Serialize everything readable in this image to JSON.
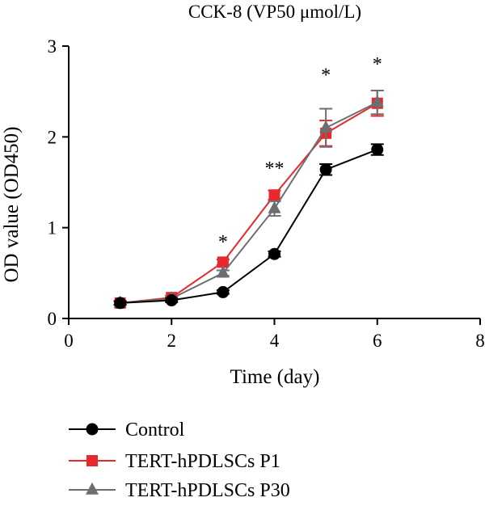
{
  "chart_data": {
    "type": "line",
    "title": "CCK-8 (VP50 μmol/L)",
    "xlabel": "Time (day)",
    "ylabel": "OD value (OD450)",
    "xlim": [
      0,
      8
    ],
    "ylim": [
      0,
      3
    ],
    "x_ticks": [
      "0",
      "2",
      "4",
      "6",
      "8"
    ],
    "y_ticks": [
      "0",
      "1",
      "2",
      "3"
    ],
    "x": [
      1,
      2,
      3,
      4,
      5,
      6
    ],
    "grid": false,
    "legend_position": "bottom-left",
    "series": [
      {
        "name": "Control",
        "color": "#000000",
        "marker": "circle",
        "values": [
          0.17,
          0.2,
          0.29,
          0.71,
          1.64,
          1.86
        ],
        "errors": [
          0.02,
          0.02,
          0.02,
          0.03,
          0.06,
          0.06
        ]
      },
      {
        "name": "TERT-hPDLSCs P1",
        "color": "#e8282b",
        "marker": "square",
        "values": [
          0.17,
          0.23,
          0.62,
          1.36,
          2.04,
          2.37
        ],
        "errors": [
          0.02,
          0.02,
          0.03,
          0.05,
          0.14,
          0.14
        ]
      },
      {
        "name": "TERT-hPDLSCs P30",
        "color": "#6d6e71",
        "marker": "triangle",
        "values": [
          0.17,
          0.22,
          0.5,
          1.21,
          2.1,
          2.38
        ],
        "errors": [
          0.02,
          0.02,
          0.03,
          0.08,
          0.21,
          0.13
        ]
      }
    ],
    "annotations": [
      {
        "x": 3,
        "y": 0.88,
        "text": "*"
      },
      {
        "x": 4,
        "y": 1.69,
        "text": "**"
      },
      {
        "x": 5,
        "y": 2.72,
        "text": "*"
      },
      {
        "x": 6,
        "y": 2.84,
        "text": "*"
      }
    ]
  }
}
